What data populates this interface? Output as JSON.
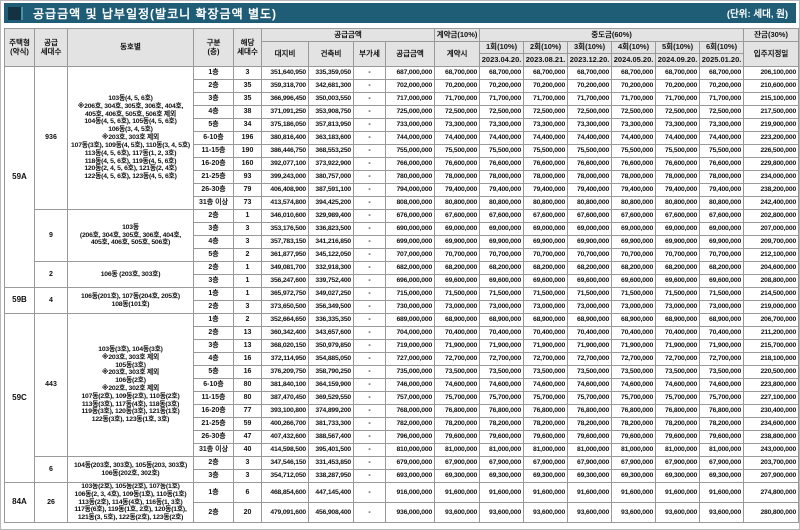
{
  "title": "공급금액 및 납부일정(발코니 확장금액 별도)",
  "unit_note": "(단위: 세대, 원)",
  "colors": {
    "title_bar": "#1f5d77",
    "title_square": "#143242",
    "header_bg": "#e3e3e3",
    "grid_border": "#999999",
    "strong_border": "#2a2a2a"
  },
  "header": {
    "house_type": "주택형\n(약식)",
    "supply_count": "공급\n세대수",
    "dongho": "동호별",
    "floor": "구분\n(층)",
    "unit_count": "해당\n세대수",
    "supply_group": "공급금액",
    "land": "대지비",
    "building": "건축비",
    "vat": "부가세",
    "supply_total": "공급금액",
    "contract_group": "계약금(10%)",
    "contract": "계약시",
    "interim_group": "중도금(60%)",
    "installments": [
      {
        "label": "1회(10%)",
        "date": "2023.04.20."
      },
      {
        "label": "2회(10%)",
        "date": "2023.08.21."
      },
      {
        "label": "3회(10%)",
        "date": "2023.12.20."
      },
      {
        "label": "4회(10%)",
        "date": "2024.05.20."
      },
      {
        "label": "5회(10%)",
        "date": "2024.09.20."
      },
      {
        "label": "6회(10%)",
        "date": "2025.01.20."
      }
    ],
    "balance_group": "잔금(30%)",
    "balance": "입주지정일"
  },
  "groups": [
    {
      "type": "59A",
      "subgroups": [
        {
          "units": "936",
          "dongho": [
            "103동(4, 5, 6호)",
            "※206호, 304호, 305호, 306호, 404호,",
            "405호, 406호, 505호, 506호 제외",
            "104동(4, 5, 6호), 105동(4, 5, 6호)",
            "106동(3, 4, 5호)",
            "※203호, 303호 제외",
            "107동(3호), 109동(4, 5호), 110동(3, 4, 5호)",
            "113동(4, 5, 6호), 117동(1, 2, 3호)",
            "118동(4, 5, 6호), 119동(4, 5, 6호)",
            "120동(2, 4, 5, 6호), 121동(2, 4호)",
            "122동(4, 5, 6호), 123동(4, 5, 6호)"
          ],
          "rows": [
            {
              "floor": "1층",
              "count": "3",
              "land": "351,640,950",
              "building": "335,359,050",
              "vat": "-",
              "total": "687,000,000",
              "installment": "68,700,000",
              "balance": "206,100,000"
            },
            {
              "floor": "2층",
              "count": "35",
              "land": "359,318,700",
              "building": "342,681,300",
              "vat": "-",
              "total": "702,000,000",
              "installment": "70,200,000",
              "balance": "210,600,000"
            },
            {
              "floor": "3층",
              "count": "35",
              "land": "366,996,450",
              "building": "350,003,550",
              "vat": "-",
              "total": "717,000,000",
              "installment": "71,700,000",
              "balance": "215,100,000"
            },
            {
              "floor": "4층",
              "count": "38",
              "land": "371,091,250",
              "building": "353,908,750",
              "vat": "-",
              "total": "725,000,000",
              "installment": "72,500,000",
              "balance": "217,500,000",
              "heavy_top": true
            },
            {
              "floor": "5층",
              "count": "34",
              "land": "375,186,050",
              "building": "357,813,950",
              "vat": "-",
              "total": "733,000,000",
              "installment": "73,300,000",
              "balance": "219,900,000"
            },
            {
              "floor": "6-10층",
              "count": "196",
              "land": "380,816,400",
              "building": "363,183,600",
              "vat": "-",
              "total": "744,000,000",
              "installment": "74,400,000",
              "balance": "223,200,000"
            },
            {
              "floor": "11-15층",
              "count": "190",
              "land": "386,446,750",
              "building": "368,553,250",
              "vat": "-",
              "total": "755,000,000",
              "installment": "75,500,000",
              "balance": "226,500,000"
            },
            {
              "floor": "16-20층",
              "count": "160",
              "land": "392,077,100",
              "building": "373,922,900",
              "vat": "-",
              "total": "766,000,000",
              "installment": "76,600,000",
              "balance": "229,800,000"
            },
            {
              "floor": "21-25층",
              "count": "93",
              "land": "399,243,000",
              "building": "380,757,000",
              "vat": "-",
              "total": "780,000,000",
              "installment": "78,000,000",
              "balance": "234,000,000"
            },
            {
              "floor": "26-30층",
              "count": "79",
              "land": "406,408,900",
              "building": "387,591,100",
              "vat": "-",
              "total": "794,000,000",
              "installment": "79,400,000",
              "balance": "238,200,000"
            },
            {
              "floor": "31층 이상",
              "count": "73",
              "land": "413,574,800",
              "building": "394,425,200",
              "vat": "-",
              "total": "808,000,000",
              "installment": "80,800,000",
              "balance": "242,400,000"
            }
          ]
        },
        {
          "units": "9",
          "dongho": [
            "103동",
            "(206호, 304호, 305호, 306호, 404호,",
            "405호, 406호, 505호, 506호)"
          ],
          "rows": [
            {
              "floor": "2층",
              "count": "1",
              "land": "346,010,600",
              "building": "329,989,400",
              "vat": "-",
              "total": "676,000,000",
              "installment": "67,600,000",
              "balance": "202,800,000"
            },
            {
              "floor": "3층",
              "count": "3",
              "land": "353,176,500",
              "building": "336,823,500",
              "vat": "-",
              "total": "690,000,000",
              "installment": "69,000,000",
              "balance": "207,000,000"
            },
            {
              "floor": "4층",
              "count": "3",
              "land": "357,783,150",
              "building": "341,216,850",
              "vat": "-",
              "total": "699,000,000",
              "installment": "69,900,000",
              "balance": "209,700,000"
            },
            {
              "floor": "5층",
              "count": "2",
              "land": "361,877,950",
              "building": "345,122,050",
              "vat": "-",
              "total": "707,000,000",
              "installment": "70,700,000",
              "balance": "212,100,000"
            }
          ]
        },
        {
          "units": "2",
          "dongho": [
            "106동 (203호, 303호)"
          ],
          "rows": [
            {
              "floor": "2층",
              "count": "1",
              "land": "349,081,700",
              "building": "332,918,300",
              "vat": "-",
              "total": "682,000,000",
              "installment": "68,200,000",
              "balance": "204,600,000"
            },
            {
              "floor": "3층",
              "count": "1",
              "land": "356,247,600",
              "building": "339,752,400",
              "vat": "-",
              "total": "696,000,000",
              "installment": "69,600,000",
              "balance": "208,800,000"
            }
          ]
        }
      ]
    },
    {
      "type": "59B",
      "subgroups": [
        {
          "units": "4",
          "dongho": [
            "106동(201호), 107동(204호, 205호)",
            "108동(101호)"
          ],
          "rows": [
            {
              "floor": "1층",
              "count": "1",
              "land": "365,972,750",
              "building": "349,027,250",
              "vat": "-",
              "total": "715,000,000",
              "installment": "71,500,000",
              "balance": "214,500,000"
            },
            {
              "floor": "2층",
              "count": "3",
              "land": "373,650,500",
              "building": "356,349,500",
              "vat": "-",
              "total": "730,000,000",
              "installment": "73,000,000",
              "balance": "219,000,000"
            }
          ]
        }
      ]
    },
    {
      "type": "59C",
      "subgroups": [
        {
          "units": "443",
          "dongho": [
            "103동(3호), 104동(3호)",
            "※203호, 303호 제외",
            "105동(3호)",
            "※203호, 303호 제외",
            "106동(2호)",
            "※202호, 302호 제외",
            "107동(2호), 109동(2호), 110동(2호)",
            "113동(3호), 117동(4호), 118동(3호)",
            "119동(3호), 120동(3호), 121동(1호)",
            "122동(3호), 123동(1호, 3호)"
          ],
          "rows": [
            {
              "floor": "1층",
              "count": "2",
              "land": "352,664,650",
              "building": "336,335,350",
              "vat": "-",
              "total": "689,000,000",
              "installment": "68,900,000",
              "balance": "206,700,000"
            },
            {
              "floor": "2층",
              "count": "13",
              "land": "360,342,400",
              "building": "343,657,600",
              "vat": "-",
              "total": "704,000,000",
              "installment": "70,400,000",
              "balance": "211,200,000"
            },
            {
              "floor": "3층",
              "count": "13",
              "land": "368,020,150",
              "building": "350,979,850",
              "vat": "-",
              "total": "719,000,000",
              "installment": "71,900,000",
              "balance": "215,700,000"
            },
            {
              "floor": "4층",
              "count": "16",
              "land": "372,114,950",
              "building": "354,885,050",
              "vat": "-",
              "total": "727,000,000",
              "installment": "72,700,000",
              "balance": "218,100,000"
            },
            {
              "floor": "5층",
              "count": "16",
              "land": "376,209,750",
              "building": "358,790,250",
              "vat": "-",
              "total": "735,000,000",
              "installment": "73,500,000",
              "balance": "220,500,000"
            },
            {
              "floor": "6-10층",
              "count": "80",
              "land": "381,840,100",
              "building": "364,159,900",
              "vat": "-",
              "total": "746,000,000",
              "installment": "74,600,000",
              "balance": "223,800,000"
            },
            {
              "floor": "11-15층",
              "count": "80",
              "land": "387,470,450",
              "building": "369,529,550",
              "vat": "-",
              "total": "757,000,000",
              "installment": "75,700,000",
              "balance": "227,100,000"
            },
            {
              "floor": "16-20층",
              "count": "77",
              "land": "393,100,800",
              "building": "374,899,200",
              "vat": "-",
              "total": "768,000,000",
              "installment": "76,800,000",
              "balance": "230,400,000"
            },
            {
              "floor": "21-25층",
              "count": "59",
              "land": "400,266,700",
              "building": "381,733,300",
              "vat": "-",
              "total": "782,000,000",
              "installment": "78,200,000",
              "balance": "234,600,000"
            },
            {
              "floor": "26-30층",
              "count": "47",
              "land": "407,432,600",
              "building": "388,567,400",
              "vat": "-",
              "total": "796,000,000",
              "installment": "79,600,000",
              "balance": "238,800,000"
            },
            {
              "floor": "31층 이상",
              "count": "40",
              "land": "414,598,500",
              "building": "395,401,500",
              "vat": "-",
              "total": "810,000,000",
              "installment": "81,000,000",
              "balance": "243,000,000"
            }
          ]
        },
        {
          "units": "6",
          "dongho": [
            "104동(203호, 303호), 105동(203, 303호)",
            "106동(202호, 302호)"
          ],
          "rows": [
            {
              "floor": "2층",
              "count": "3",
              "land": "347,546,150",
              "building": "331,453,850",
              "vat": "-",
              "total": "679,000,000",
              "installment": "67,900,000",
              "balance": "203,700,000"
            },
            {
              "floor": "3층",
              "count": "3",
              "land": "354,712,050",
              "building": "338,287,950",
              "vat": "-",
              "total": "693,000,000",
              "installment": "69,300,000",
              "balance": "207,900,000"
            }
          ]
        }
      ]
    },
    {
      "type": "84A",
      "tall": true,
      "subgroups": [
        {
          "units": "26",
          "dongho": [
            "103동(2호), 105동(2호), 107동(1호)",
            "106동(2, 3, 4호), 109동(1호), 110동(1호)",
            "113동(2호), 114동(4호), 116동(1, 3호)",
            "117동(6호), 119동(1호, 2호), 120동(1호),",
            "121동(3, 5호), 122동(2호), 123동(2호)"
          ],
          "rows": [
            {
              "floor": "1층",
              "count": "6",
              "land": "468,854,600",
              "building": "447,145,400",
              "vat": "-",
              "total": "916,000,000",
              "installment": "91,600,000",
              "balance": "274,800,000"
            },
            {
              "floor": "2층",
              "count": "20",
              "land": "479,091,600",
              "building": "456,908,400",
              "vat": "-",
              "total": "936,000,000",
              "installment": "93,600,000",
              "balance": "280,800,000"
            }
          ]
        }
      ]
    }
  ]
}
